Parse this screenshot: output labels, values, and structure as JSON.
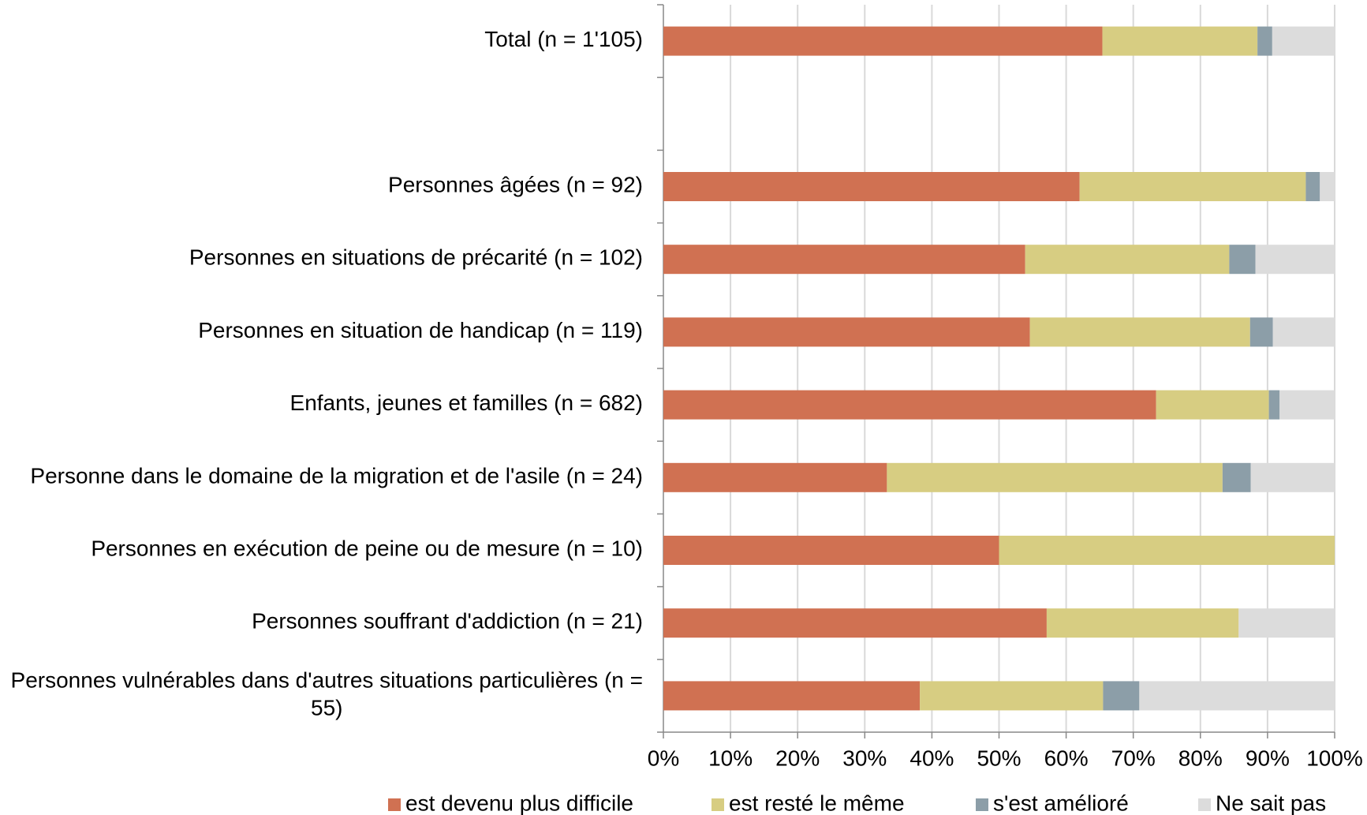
{
  "chart_data": {
    "type": "stacked_barh",
    "categories": [
      "Total (n = 1'105)",
      null,
      "Personnes âgées (n = 92)",
      "Personnes en situations de précarité (n = 102)",
      "Personnes en situation de handicap (n = 119)",
      "Enfants, jeunes et familles (n = 682)",
      "Personne dans le domaine de la migration et de l'asile (n = 24)",
      "Personnes en exécution de peine ou de mesure (n = 10)",
      "Personnes souffrant d'addiction (n = 21)",
      "Personnes vulnérables dans d'autres situations particulières (n = 55)"
    ],
    "series": [
      {
        "name": "est devenu plus difficile",
        "color": "#d07152",
        "values": [
          65.4,
          null,
          62.0,
          53.9,
          54.6,
          73.4,
          33.3,
          50,
          57.1,
          38.2
        ]
      },
      {
        "name": "est resté le même",
        "color": "#d7cd82",
        "values": [
          23.1,
          null,
          33.7,
          30.4,
          32.8,
          16.8,
          50.0,
          50,
          28.6,
          27.3
        ]
      },
      {
        "name": "s'est amélioré",
        "color": "#8c9ea8",
        "values": [
          2.2,
          null,
          2.1,
          3.9,
          3.4,
          1.6,
          4.2,
          0,
          0,
          5.4
        ]
      },
      {
        "name": "Ne sait pas",
        "color": "#dcdcdc",
        "values": [
          9.3,
          null,
          2.2,
          11.8,
          9.2,
          8.2,
          12.5,
          0,
          14.3,
          29.1
        ]
      }
    ],
    "xlim": [
      0,
      100
    ],
    "xticks": [
      {
        "value": 0,
        "label": "0%"
      },
      {
        "value": 10,
        "label": "10%"
      },
      {
        "value": 20,
        "label": "20%"
      },
      {
        "value": 30,
        "label": "30%"
      },
      {
        "value": 40,
        "label": "40%"
      },
      {
        "value": 50,
        "label": "50%"
      },
      {
        "value": 60,
        "label": "60%"
      },
      {
        "value": 70,
        "label": "70%"
      },
      {
        "value": 80,
        "label": "80%"
      },
      {
        "value": 90,
        "label": "90%"
      },
      {
        "value": 100,
        "label": "100%"
      }
    ],
    "grid": true,
    "legend": "bottom"
  }
}
